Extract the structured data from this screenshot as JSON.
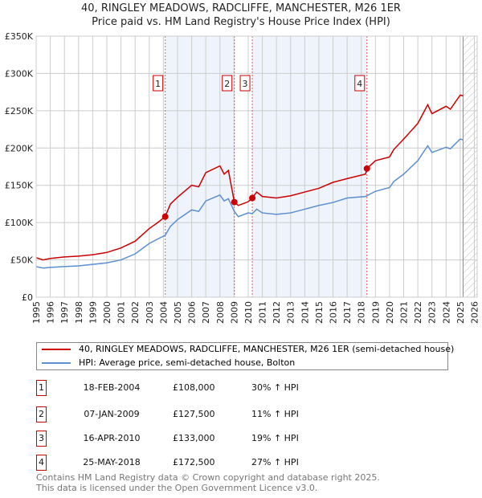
{
  "title": "40, RINGLEY MEADOWS, RADCLIFFE, MANCHESTER, M26 1ER",
  "subtitle": "Price paid vs. HM Land Registry's House Price Index (HPI)",
  "colors": {
    "property": "#cc0000",
    "hpi": "#5b8fd0",
    "shade": "#eef3fc",
    "grid": "#cccccc"
  },
  "chart_data": {
    "type": "line",
    "title": "Price paid vs. HM Land Registry's House Price Index (HPI)",
    "xlim": [
      1995,
      2026
    ],
    "ylim": [
      0,
      350000
    ],
    "y_ticks": [
      {
        "v": 0,
        "label": "£0"
      },
      {
        "v": 50000,
        "label": "£50K"
      },
      {
        "v": 100000,
        "label": "£100K"
      },
      {
        "v": 150000,
        "label": "£150K"
      },
      {
        "v": 200000,
        "label": "£200K"
      },
      {
        "v": 250000,
        "label": "£250K"
      },
      {
        "v": 300000,
        "label": "£300K"
      },
      {
        "v": 350000,
        "label": "£350K"
      }
    ],
    "x_ticks": [
      "1995",
      "1996",
      "1997",
      "1998",
      "1999",
      "2000",
      "2001",
      "2002",
      "2003",
      "2004",
      "2005",
      "2006",
      "2007",
      "2008",
      "2009",
      "2010",
      "2011",
      "2012",
      "2013",
      "2014",
      "2015",
      "2016",
      "2017",
      "2018",
      "2019",
      "2020",
      "2021",
      "2022",
      "2023",
      "2024",
      "2025",
      "2026"
    ],
    "grid": true,
    "series": [
      {
        "name": "40, RINGLEY MEADOWS, RADCLIFFE, MANCHESTER, M26 1ER (semi-detached house)",
        "color": "#cc0000",
        "x": [
          1995,
          1995.5,
          1996,
          1997,
          1998,
          1999,
          2000,
          2001,
          2002,
          2003,
          2003.6,
          2004.13,
          2004.5,
          2005,
          2006,
          2006.5,
          2007,
          2008,
          2008.3,
          2008.6,
          2009.02,
          2009.3,
          2010,
          2010.29,
          2010.6,
          2011,
          2012,
          2013,
          2014,
          2015,
          2016,
          2017,
          2018.3,
          2018.4,
          2019,
          2020,
          2020.3,
          2021,
          2022,
          2022.7,
          2023,
          2024,
          2024.3,
          2025,
          2025.2
        ],
        "y": [
          53000,
          50000,
          52000,
          54000,
          55000,
          57000,
          60000,
          66000,
          75000,
          92000,
          100000,
          108000,
          125000,
          134000,
          150000,
          148000,
          167000,
          176000,
          165000,
          170000,
          127500,
          123000,
          128000,
          133000,
          141000,
          135000,
          133000,
          136000,
          141000,
          146000,
          154000,
          159000,
          165000,
          172500,
          183000,
          188000,
          198000,
          212000,
          233000,
          258000,
          246000,
          256000,
          252000,
          271000,
          270000
        ]
      },
      {
        "name": "HPI: Average price, semi-detached house, Bolton",
        "color": "#5b8fd0",
        "x": [
          1995,
          1995.5,
          1996,
          1997,
          1998,
          1999,
          2000,
          2001,
          2002,
          2003,
          2003.6,
          2004.13,
          2004.5,
          2005,
          2006,
          2006.5,
          2007,
          2008,
          2008.3,
          2008.6,
          2009.02,
          2009.3,
          2010,
          2010.29,
          2010.6,
          2011,
          2012,
          2013,
          2014,
          2015,
          2016,
          2017,
          2018.3,
          2018.4,
          2019,
          2020,
          2020.3,
          2021,
          2022,
          2022.7,
          2023,
          2024,
          2024.3,
          2025,
          2025.2
        ],
        "y": [
          41000,
          39000,
          40000,
          41000,
          42000,
          44000,
          46000,
          50000,
          58000,
          72000,
          78000,
          83000,
          95000,
          104000,
          117000,
          115000,
          129000,
          137000,
          129000,
          132000,
          115000,
          108000,
          113000,
          112000,
          118000,
          113000,
          111000,
          113000,
          118000,
          123000,
          127000,
          133000,
          135000,
          136000,
          142000,
          147000,
          155000,
          165000,
          183000,
          203000,
          194000,
          201000,
          199000,
          212000,
          211000
        ]
      }
    ],
    "sales": [
      {
        "id": "1",
        "x": 2004.13,
        "y": 108000,
        "date": "18-FEB-2004",
        "price": "£108,000",
        "hpi": "30% ↑ HPI"
      },
      {
        "id": "2",
        "x": 2009.02,
        "y": 127500,
        "date": "07-JAN-2009",
        "price": "£127,500",
        "hpi": "11% ↑ HPI"
      },
      {
        "id": "3",
        "x": 2010.29,
        "y": 133000,
        "date": "16-APR-2010",
        "price": "£133,000",
        "hpi": "19% ↑ HPI"
      },
      {
        "id": "4",
        "x": 2018.4,
        "y": 172500,
        "date": "25-MAY-2018",
        "price": "£172,500",
        "hpi": "27% ↑ HPI"
      }
    ],
    "shaded_periods": [
      [
        2004.13,
        2009.02
      ],
      [
        2010.29,
        2018.4
      ]
    ],
    "forecast_hatch_from": 2025.2
  },
  "legend": {
    "property": "40, RINGLEY MEADOWS, RADCLIFFE, MANCHESTER, M26 1ER (semi-detached house)",
    "hpi": "HPI: Average price, semi-detached house, Bolton"
  },
  "footer": {
    "line1": "Contains HM Land Registry data © Crown copyright and database right 2025.",
    "line2": "This data is licensed under the Open Government Licence v3.0."
  }
}
